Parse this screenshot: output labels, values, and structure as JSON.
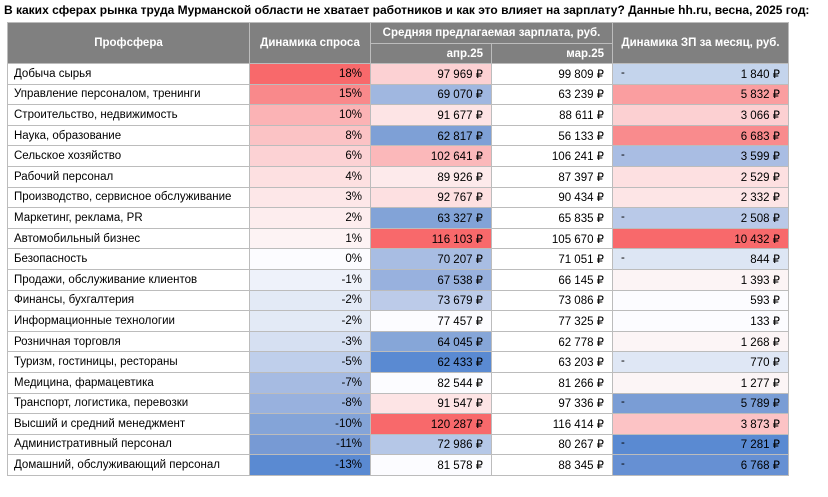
{
  "title": "В каких сферах рынка труда Мурманской области не хватает работников и как это влияет на зарплату? Данные hh.ru, весна, 2025 год:",
  "headers": {
    "sphere": "Профсфера",
    "demand": "Динамика спроса",
    "salary_group": "Средняя предлагаемая зарплата, руб.",
    "apr": "апр.25",
    "mar": "мар.25",
    "delta": "Динамика ЗП за месяц, руб."
  },
  "rows": [
    {
      "name": "Добыча сырья",
      "demand": "18%",
      "apr": "97 969 ₽",
      "mar": "99 809 ₽",
      "sign": "-",
      "delta": "1 840 ₽",
      "demand_color": "#f8696b",
      "apr_color": "#fcd1d3",
      "delta_color": "#c4d4ec"
    },
    {
      "name": "Управление персоналом, тренинги",
      "demand": "15%",
      "apr": "69 070 ₽",
      "mar": "63 239 ₽",
      "sign": "",
      "delta": "5 832 ₽",
      "demand_color": "#f9898b",
      "apr_color": "#a0b7e0",
      "delta_color": "#fa9ea0"
    },
    {
      "name": "Строительство, недвижимость",
      "demand": "10%",
      "apr": "91 677 ₽",
      "mar": "88 611 ₽",
      "sign": "",
      "delta": "3 066 ₽",
      "demand_color": "#fbb3b5",
      "apr_color": "#fde4e5",
      "delta_color": "#fcd0d2"
    },
    {
      "name": "Наука, образование",
      "demand": "8%",
      "apr": "62 817 ₽",
      "mar": "56 133 ₽",
      "sign": "",
      "delta": "6 683 ₽",
      "demand_color": "#fbc3c5",
      "apr_color": "#7ea0d6",
      "delta_color": "#f98b8d"
    },
    {
      "name": "Сельское хозяйство",
      "demand": "6%",
      "apr": "102 641 ₽",
      "mar": "106 241 ₽",
      "sign": "-",
      "delta": "3 599 ₽",
      "demand_color": "#fcd2d4",
      "apr_color": "#fbb8ba",
      "delta_color": "#a9bde3"
    },
    {
      "name": "Рабочий персонал",
      "demand": "4%",
      "apr": "89 926 ₽",
      "mar": "87 397 ₽",
      "sign": "",
      "delta": "2 529 ₽",
      "demand_color": "#fde0e1",
      "apr_color": "#fdeaeb",
      "delta_color": "#fde0e1"
    },
    {
      "name": "Производство, сервисное обслуживание",
      "demand": "3%",
      "apr": "92 767 ₽",
      "mar": "90 434 ₽",
      "sign": "",
      "delta": "2 332 ₽",
      "demand_color": "#fde7e8",
      "apr_color": "#fde0e1",
      "delta_color": "#fde5e6"
    },
    {
      "name": "Маркетинг, реклама, PR",
      "demand": "2%",
      "apr": "63 327 ₽",
      "mar": "65 835 ₽",
      "sign": "-",
      "delta": "2 508 ₽",
      "demand_color": "#fdedee",
      "apr_color": "#82a3d7",
      "delta_color": "#b9c9e8"
    },
    {
      "name": "Автомобильный бизнес",
      "demand": "1%",
      "apr": "116 103 ₽",
      "mar": "105 670 ₽",
      "sign": "",
      "delta": "10 432 ₽",
      "demand_color": "#fdf3f4",
      "apr_color": "#f8696b",
      "delta_color": "#f8696b"
    },
    {
      "name": "Безопасность",
      "demand": "0%",
      "apr": "70 207 ₽",
      "mar": "71 051 ₽",
      "sign": "-",
      "delta": "844 ₽",
      "demand_color": "#fcfcff",
      "apr_color": "#a8bde3",
      "delta_color": "#dde6f4"
    },
    {
      "name": "Продажи, обслуживание клиентов",
      "demand": "-1%",
      "apr": "67 538 ₽",
      "mar": "66 145 ₽",
      "sign": "",
      "delta": "1 393 ₽",
      "demand_color": "#eef2fa",
      "apr_color": "#98b1de",
      "delta_color": "#fcf4f5"
    },
    {
      "name": "Финансы, бухгалтерия",
      "demand": "-2%",
      "apr": "73 679 ₽",
      "mar": "73 086 ₽",
      "sign": "",
      "delta": "593 ₽",
      "demand_color": "#e3eaf6",
      "apr_color": "#bccbe9",
      "delta_color": "#fcfcff"
    },
    {
      "name": "Информационные технологии",
      "demand": "-2%",
      "apr": "77 457 ₽",
      "mar": "77 325 ₽",
      "sign": "",
      "delta": "133 ₽",
      "demand_color": "#e3eaf6",
      "apr_color": "#fcfcff",
      "delta_color": "#fcfcff"
    },
    {
      "name": "Розничная торговля",
      "demand": "-3%",
      "apr": "64 045 ₽",
      "mar": "62 778 ₽",
      "sign": "",
      "delta": "1 268 ₽",
      "demand_color": "#d6e0f2",
      "apr_color": "#86a6d8",
      "delta_color": "#fcf5f6"
    },
    {
      "name": "Туризм, гостиницы, рестораны",
      "demand": "-5%",
      "apr": "62 433 ₽",
      "mar": "63 203 ₽",
      "sign": "-",
      "delta": "770 ₽",
      "demand_color": "#bfcfeb",
      "apr_color": "#5a8ad2",
      "delta_color": "#dfe7f5"
    },
    {
      "name": "Медицина, фармацевтика",
      "demand": "-7%",
      "apr": "82 544 ₽",
      "mar": "81 266 ₽",
      "sign": "",
      "delta": "1 277 ₽",
      "demand_color": "#a6bbe2",
      "apr_color": "#fcfcff",
      "delta_color": "#fcf5f6"
    },
    {
      "name": "Транспорт, логистика, перевозки",
      "demand": "-8%",
      "apr": "91 547 ₽",
      "mar": "97 336 ₽",
      "sign": "-",
      "delta": "5 789 ₽",
      "demand_color": "#98b1de",
      "apr_color": "#fde4e5",
      "delta_color": "#7a9dd5"
    },
    {
      "name": "Высший и средний менеджмент",
      "demand": "-10%",
      "apr": "120 287 ₽",
      "mar": "116 414 ₽",
      "sign": "",
      "delta": "3 873 ₽",
      "demand_color": "#84a4d8",
      "apr_color": "#f8696b",
      "delta_color": "#fcc3c5"
    },
    {
      "name": "Административный персонал",
      "demand": "-11%",
      "apr": "72 986 ₽",
      "mar": "80 267 ₽",
      "sign": "-",
      "delta": "7 281 ₽",
      "demand_color": "#779ad4",
      "apr_color": "#b5c7e7",
      "delta_color": "#5a8ad2"
    },
    {
      "name": "Домашний, обслуживающий персонал",
      "demand": "-13%",
      "apr": "81 578 ₽",
      "mar": "88 345 ₽",
      "sign": "-",
      "delta": "6 768 ₽",
      "demand_color": "#5a8ad2",
      "apr_color": "#fcfcff",
      "delta_color": "#6690d3"
    }
  ]
}
